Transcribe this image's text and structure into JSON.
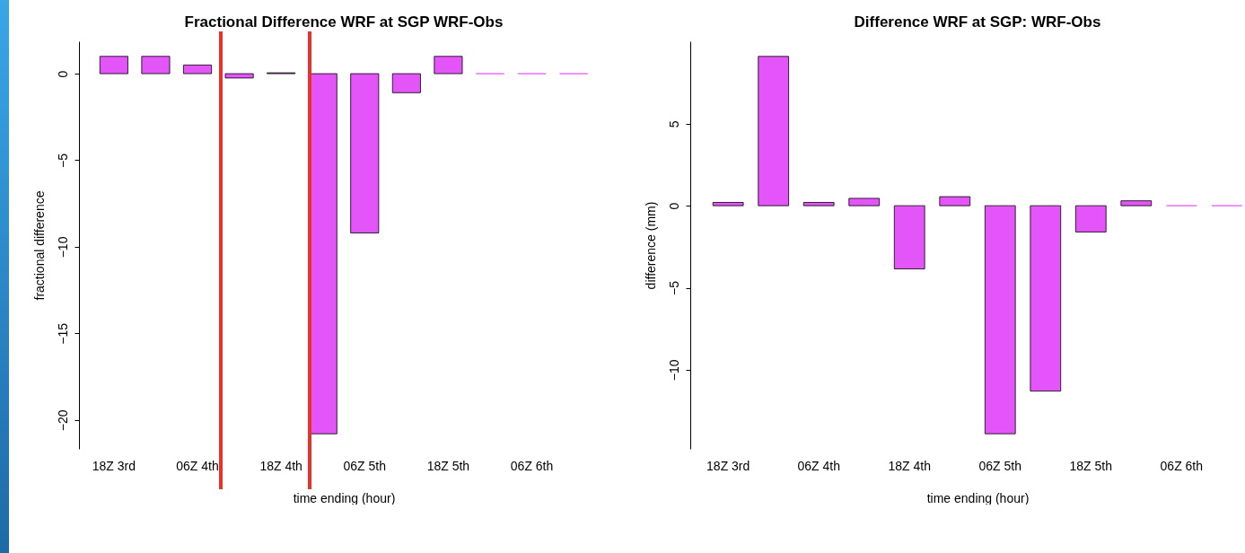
{
  "chart_data": [
    {
      "type": "bar",
      "title": "Fractional Difference WRF at SGP WRF-Obs",
      "xlabel": "time ending (hour)",
      "ylabel": "fractional difference",
      "categories": [
        "18Z 3rd",
        null,
        "06Z 4th",
        null,
        "18Z 4th",
        null,
        "06Z 5th",
        null,
        "18Z 5th",
        null,
        "06Z 6th",
        null
      ],
      "values": [
        1,
        1,
        0.5,
        -0.25,
        0.05,
        -20.8,
        -9.2,
        -1.1,
        1,
        0,
        0,
        0
      ],
      "color": "#e354f9",
      "ylim": [
        -21.67,
        1.87
      ],
      "yticks": [
        -20,
        -15,
        -10,
        -5,
        0
      ],
      "grid": false
    },
    {
      "type": "bar",
      "title": "Difference WRF at SGP: WRF-Obs",
      "xlabel": "time ending (hour)",
      "ylabel": "difference (mm)",
      "categories": [
        "18Z 3rd",
        null,
        "06Z 4th",
        null,
        "18Z 4th",
        null,
        "06Z 5th",
        null,
        "18Z 5th",
        null,
        "06Z 6th",
        null
      ],
      "values": [
        0.2,
        9.1,
        0.2,
        0.45,
        -3.85,
        0.55,
        -13.9,
        -11.3,
        -1.6,
        0.3,
        0,
        0
      ],
      "color": "#e354f9",
      "ylim": [
        -14.82,
        10.02
      ],
      "yticks": [
        -10,
        -5,
        0,
        5
      ],
      "grid": false
    }
  ]
}
